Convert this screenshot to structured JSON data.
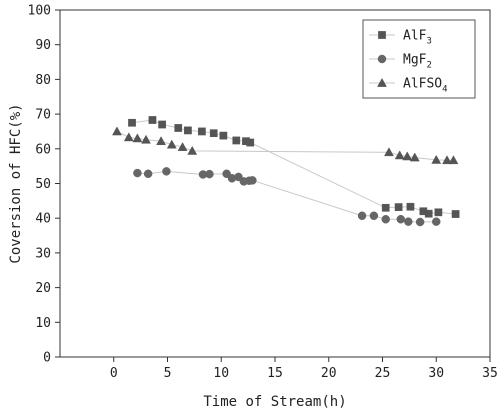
{
  "chart_data": {
    "type": "scatter",
    "xlabel": "Time of Stream(h)",
    "ylabel": "Coversion of HFC(%)",
    "xlim": [
      -5,
      35
    ],
    "ylim": [
      0,
      100
    ],
    "xticks": [
      0,
      5,
      10,
      15,
      20,
      25,
      30,
      35
    ],
    "yticks": [
      0,
      10,
      20,
      30,
      40,
      50,
      60,
      70,
      80,
      90,
      100
    ],
    "grid": false,
    "legend_position": "top-right",
    "series": [
      {
        "name": "AlF3",
        "label_main": "AlF",
        "label_sub": "3",
        "marker": "square",
        "color": "#555555",
        "line_color": "#c8c8c8",
        "x": [
          1.7,
          3.6,
          4.5,
          6.0,
          6.9,
          8.2,
          9.3,
          10.2,
          11.4,
          12.3,
          12.7,
          25.3,
          26.5,
          27.6,
          28.8,
          29.3,
          30.2,
          31.8
        ],
        "y": [
          67.5,
          68.3,
          67.0,
          66.0,
          65.3,
          65.0,
          64.5,
          63.8,
          62.4,
          62.2,
          61.8,
          43.0,
          43.2,
          43.3,
          42.0,
          41.3,
          41.7,
          41.2
        ]
      },
      {
        "name": "MgF2",
        "label_main": "MgF",
        "label_sub": "2",
        "marker": "circle",
        "color": "#666666",
        "line_color": "#c8c8c8",
        "x": [
          2.2,
          3.2,
          4.9,
          8.3,
          8.9,
          10.5,
          11.0,
          11.6,
          12.1,
          12.6,
          12.9,
          23.1,
          24.2,
          25.3,
          26.7,
          27.4,
          28.5,
          30.0
        ],
        "y": [
          53.0,
          52.8,
          53.5,
          52.6,
          52.7,
          52.8,
          51.5,
          51.9,
          50.6,
          50.8,
          50.9,
          40.7,
          40.7,
          39.7,
          39.7,
          39.0,
          38.9,
          39.0
        ]
      },
      {
        "name": "AlFSO4",
        "label_main": "AlFSO",
        "label_sub": "4",
        "marker": "triangle",
        "color": "#555555",
        "line_color": "#c8c8c8",
        "x": [
          0.3,
          1.4,
          2.2,
          3.0,
          4.4,
          5.4,
          6.4,
          7.3,
          25.6,
          26.6,
          27.3,
          28.0,
          30.0,
          31.0,
          31.6
        ],
        "y": [
          65.0,
          63.3,
          63.0,
          62.6,
          62.2,
          61.2,
          60.5,
          59.4,
          59.0,
          58.1,
          57.8,
          57.5,
          56.8,
          56.7,
          56.7
        ]
      }
    ]
  }
}
